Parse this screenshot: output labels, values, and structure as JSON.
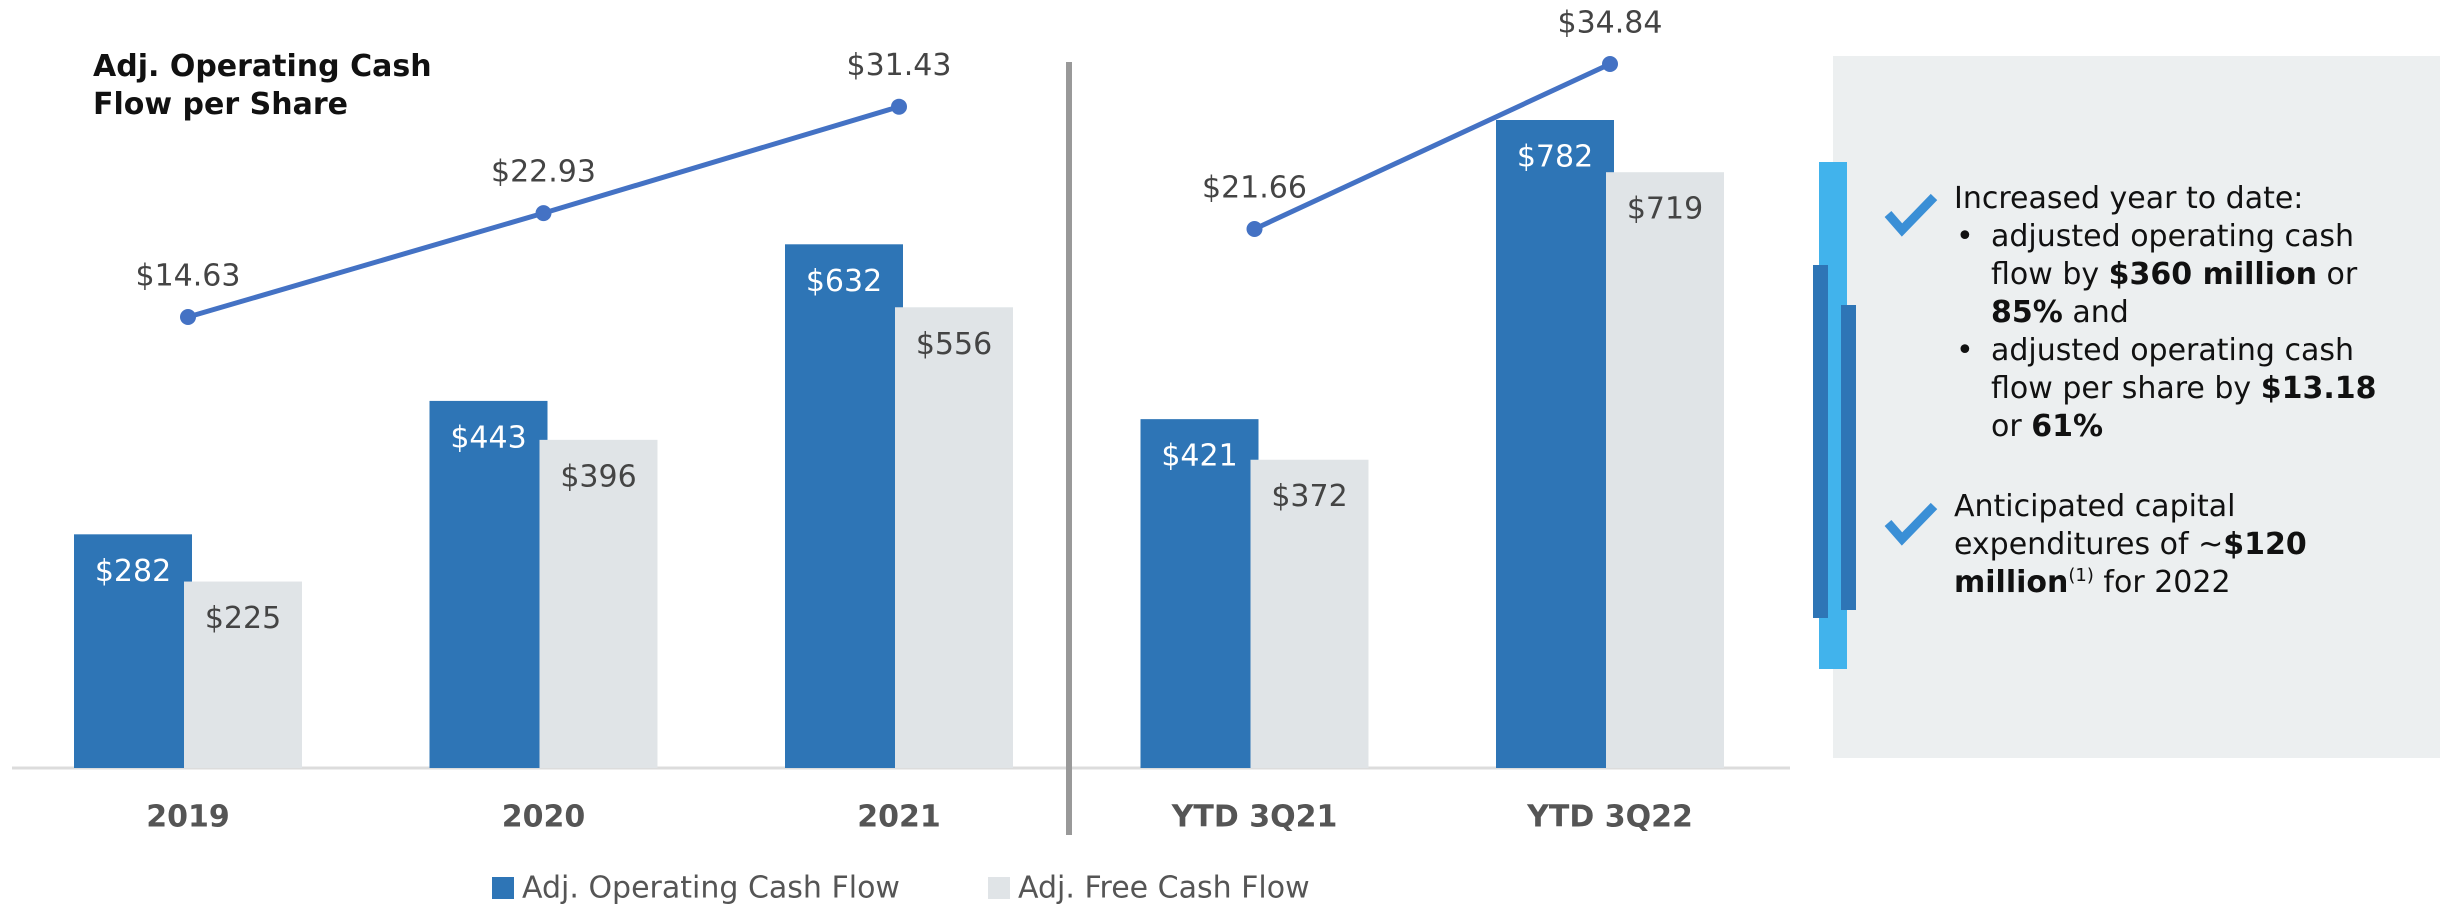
{
  "chart_data": [
    {
      "type": "bar",
      "title": "Adj. Operating Cash Flow per Share",
      "categories": [
        "2019",
        "2020",
        "2021"
      ],
      "series": [
        {
          "name": "Adj. Operating Cash Flow",
          "color": "#2e75b6",
          "values": [
            282,
            443,
            632
          ],
          "value_labels": [
            "$282",
            "$443",
            "$632"
          ]
        },
        {
          "name": "Adj. Free Cash Flow",
          "color": "#e0e4e7",
          "values": [
            225,
            396,
            556
          ],
          "value_labels": [
            "$225",
            "$396",
            "$556"
          ]
        },
        {
          "type": "line",
          "color": "#4472c4",
          "values": [
            14.63,
            22.93,
            31.43
          ],
          "value_labels": [
            "$14.63",
            "$22.93",
            "$31.43"
          ]
        }
      ]
    },
    {
      "type": "bar",
      "categories": [
        "YTD 3Q21",
        "YTD 3Q22"
      ],
      "series": [
        {
          "color": "#2e75b6",
          "values": [
            421,
            782
          ],
          "value_labels": [
            "$421",
            "$782"
          ]
        },
        {
          "color": "#e0e4e7",
          "values": [
            372,
            719
          ],
          "value_labels": [
            "$372",
            "$719"
          ]
        },
        {
          "type": "line",
          "color": "#4472c4",
          "values": [
            21.66,
            34.84
          ],
          "value_labels": [
            "$21.66",
            "$34.84"
          ]
        }
      ]
    }
  ],
  "panel": {
    "items": [
      {
        "heading": "Increased year to date:",
        "bullets": [
          [
            [
              {
                "text": "adjusted operating cash"
              }
            ],
            [
              {
                "text": "flow by "
              },
              {
                "text": "$360 million",
                "bold": true
              },
              {
                "text": " or"
              }
            ],
            [
              {
                "text": "85%",
                "bold": true
              },
              {
                "text": " and"
              }
            ]
          ],
          [
            [
              {
                "text": "adjusted operating cash"
              }
            ],
            [
              {
                "text": "flow per share by "
              },
              {
                "text": "$13.18",
                "bold": true
              }
            ],
            [
              {
                "text": "or "
              },
              {
                "text": "61%",
                "bold": true
              }
            ]
          ]
        ]
      },
      {
        "lines": [
          [
            {
              "text": "Anticipated capital"
            }
          ],
          [
            {
              "text": "expenditures of ~"
            },
            {
              "text": "$120",
              "bold": true
            }
          ],
          [
            {
              "text": "million",
              "bold": true
            },
            {
              "text": "(1)",
              "sup": true
            },
            {
              "text": " for 2022"
            }
          ]
        ]
      }
    ]
  }
}
